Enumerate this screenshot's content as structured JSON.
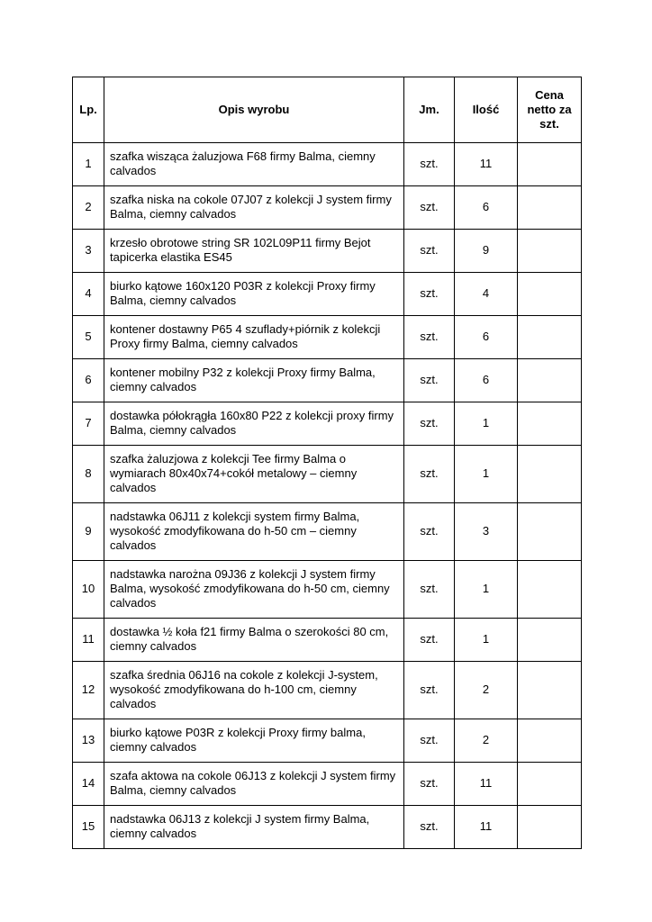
{
  "page": {
    "background_color": "#ffffff",
    "text_color": "#000000",
    "border_color": "#000000"
  },
  "table": {
    "headers": {
      "lp": "Lp.",
      "opis": "Opis wyrobu",
      "jm": "Jm.",
      "ilosc": "Ilość",
      "cena": "Cena netto za szt."
    },
    "rows": [
      {
        "lp": "1",
        "opis": "szafka wisząca żaluzjowa F68 firmy Balma, ciemny calvados",
        "jm": "szt.",
        "ilosc": "11",
        "cena": ""
      },
      {
        "lp": "2",
        "opis": "szafka niska na cokole 07J07 z kolekcji J system firmy Balma, ciemny calvados",
        "jm": "szt.",
        "ilosc": "6",
        "cena": ""
      },
      {
        "lp": "3",
        "opis": "krzesło obrotowe string SR 102L09P11 firmy Bejot tapicerka elastika ES45",
        "jm": "szt.",
        "ilosc": "9",
        "cena": ""
      },
      {
        "lp": "4",
        "opis": "biurko kątowe 160x120 P03R z kolekcji Proxy firmy Balma, ciemny calvados",
        "jm": "szt.",
        "ilosc": "4",
        "cena": ""
      },
      {
        "lp": "5",
        "opis": "kontener dostawny P65 4 szuflady+piórnik z kolekcji Proxy firmy Balma, ciemny calvados",
        "jm": "szt.",
        "ilosc": "6",
        "cena": ""
      },
      {
        "lp": "6",
        "opis": "kontener mobilny P32 z kolekcji Proxy firmy Balma, ciemny calvados",
        "jm": "szt.",
        "ilosc": "6",
        "cena": ""
      },
      {
        "lp": "7",
        "opis": "dostawka półokrągła 160x80 P22 z kolekcji proxy firmy Balma, ciemny calvados",
        "jm": "szt.",
        "ilosc": "1",
        "cena": ""
      },
      {
        "lp": "8",
        "opis": "szafka żaluzjowa z kolekcji Tee firmy Balma o wymiarach 80x40x74+cokół metalowy – ciemny calvados",
        "jm": "szt.",
        "ilosc": "1",
        "cena": ""
      },
      {
        "lp": "9",
        "opis": "nadstawka 06J11 z kolekcji system firmy Balma, wysokość zmodyfikowana do h-50 cm – ciemny calvados",
        "jm": "szt.",
        "ilosc": "3",
        "cena": ""
      },
      {
        "lp": "10",
        "opis": "nadstawka narożna 09J36 z kolekcji J system firmy Balma, wysokość zmodyfikowana do h-50 cm, ciemny calvados",
        "jm": "szt.",
        "ilosc": "1",
        "cena": ""
      },
      {
        "lp": "11",
        "opis": "dostawka ½ koła f21 firmy Balma o szerokości 80 cm, ciemny calvados",
        "jm": "szt.",
        "ilosc": "1",
        "cena": ""
      },
      {
        "lp": "12",
        "opis": "szafka średnia 06J16 na cokole z kolekcji J-system, wysokość zmodyfikowana do h-100 cm, ciemny calvados",
        "jm": "szt.",
        "ilosc": "2",
        "cena": ""
      },
      {
        "lp": "13",
        "opis": "biurko kątowe P03R z kolekcji Proxy firmy balma, ciemny calvados",
        "jm": "szt.",
        "ilosc": "2",
        "cena": ""
      },
      {
        "lp": "14",
        "opis": "szafa aktowa na cokole 06J13 z kolekcji J system firmy Balma, ciemny calvados",
        "jm": "szt.",
        "ilosc": "11",
        "cena": ""
      },
      {
        "lp": "15",
        "opis": "nadstawka 06J13 z kolekcji J system firmy Balma, ciemny calvados",
        "jm": "szt.",
        "ilosc": "11",
        "cena": ""
      }
    ]
  }
}
